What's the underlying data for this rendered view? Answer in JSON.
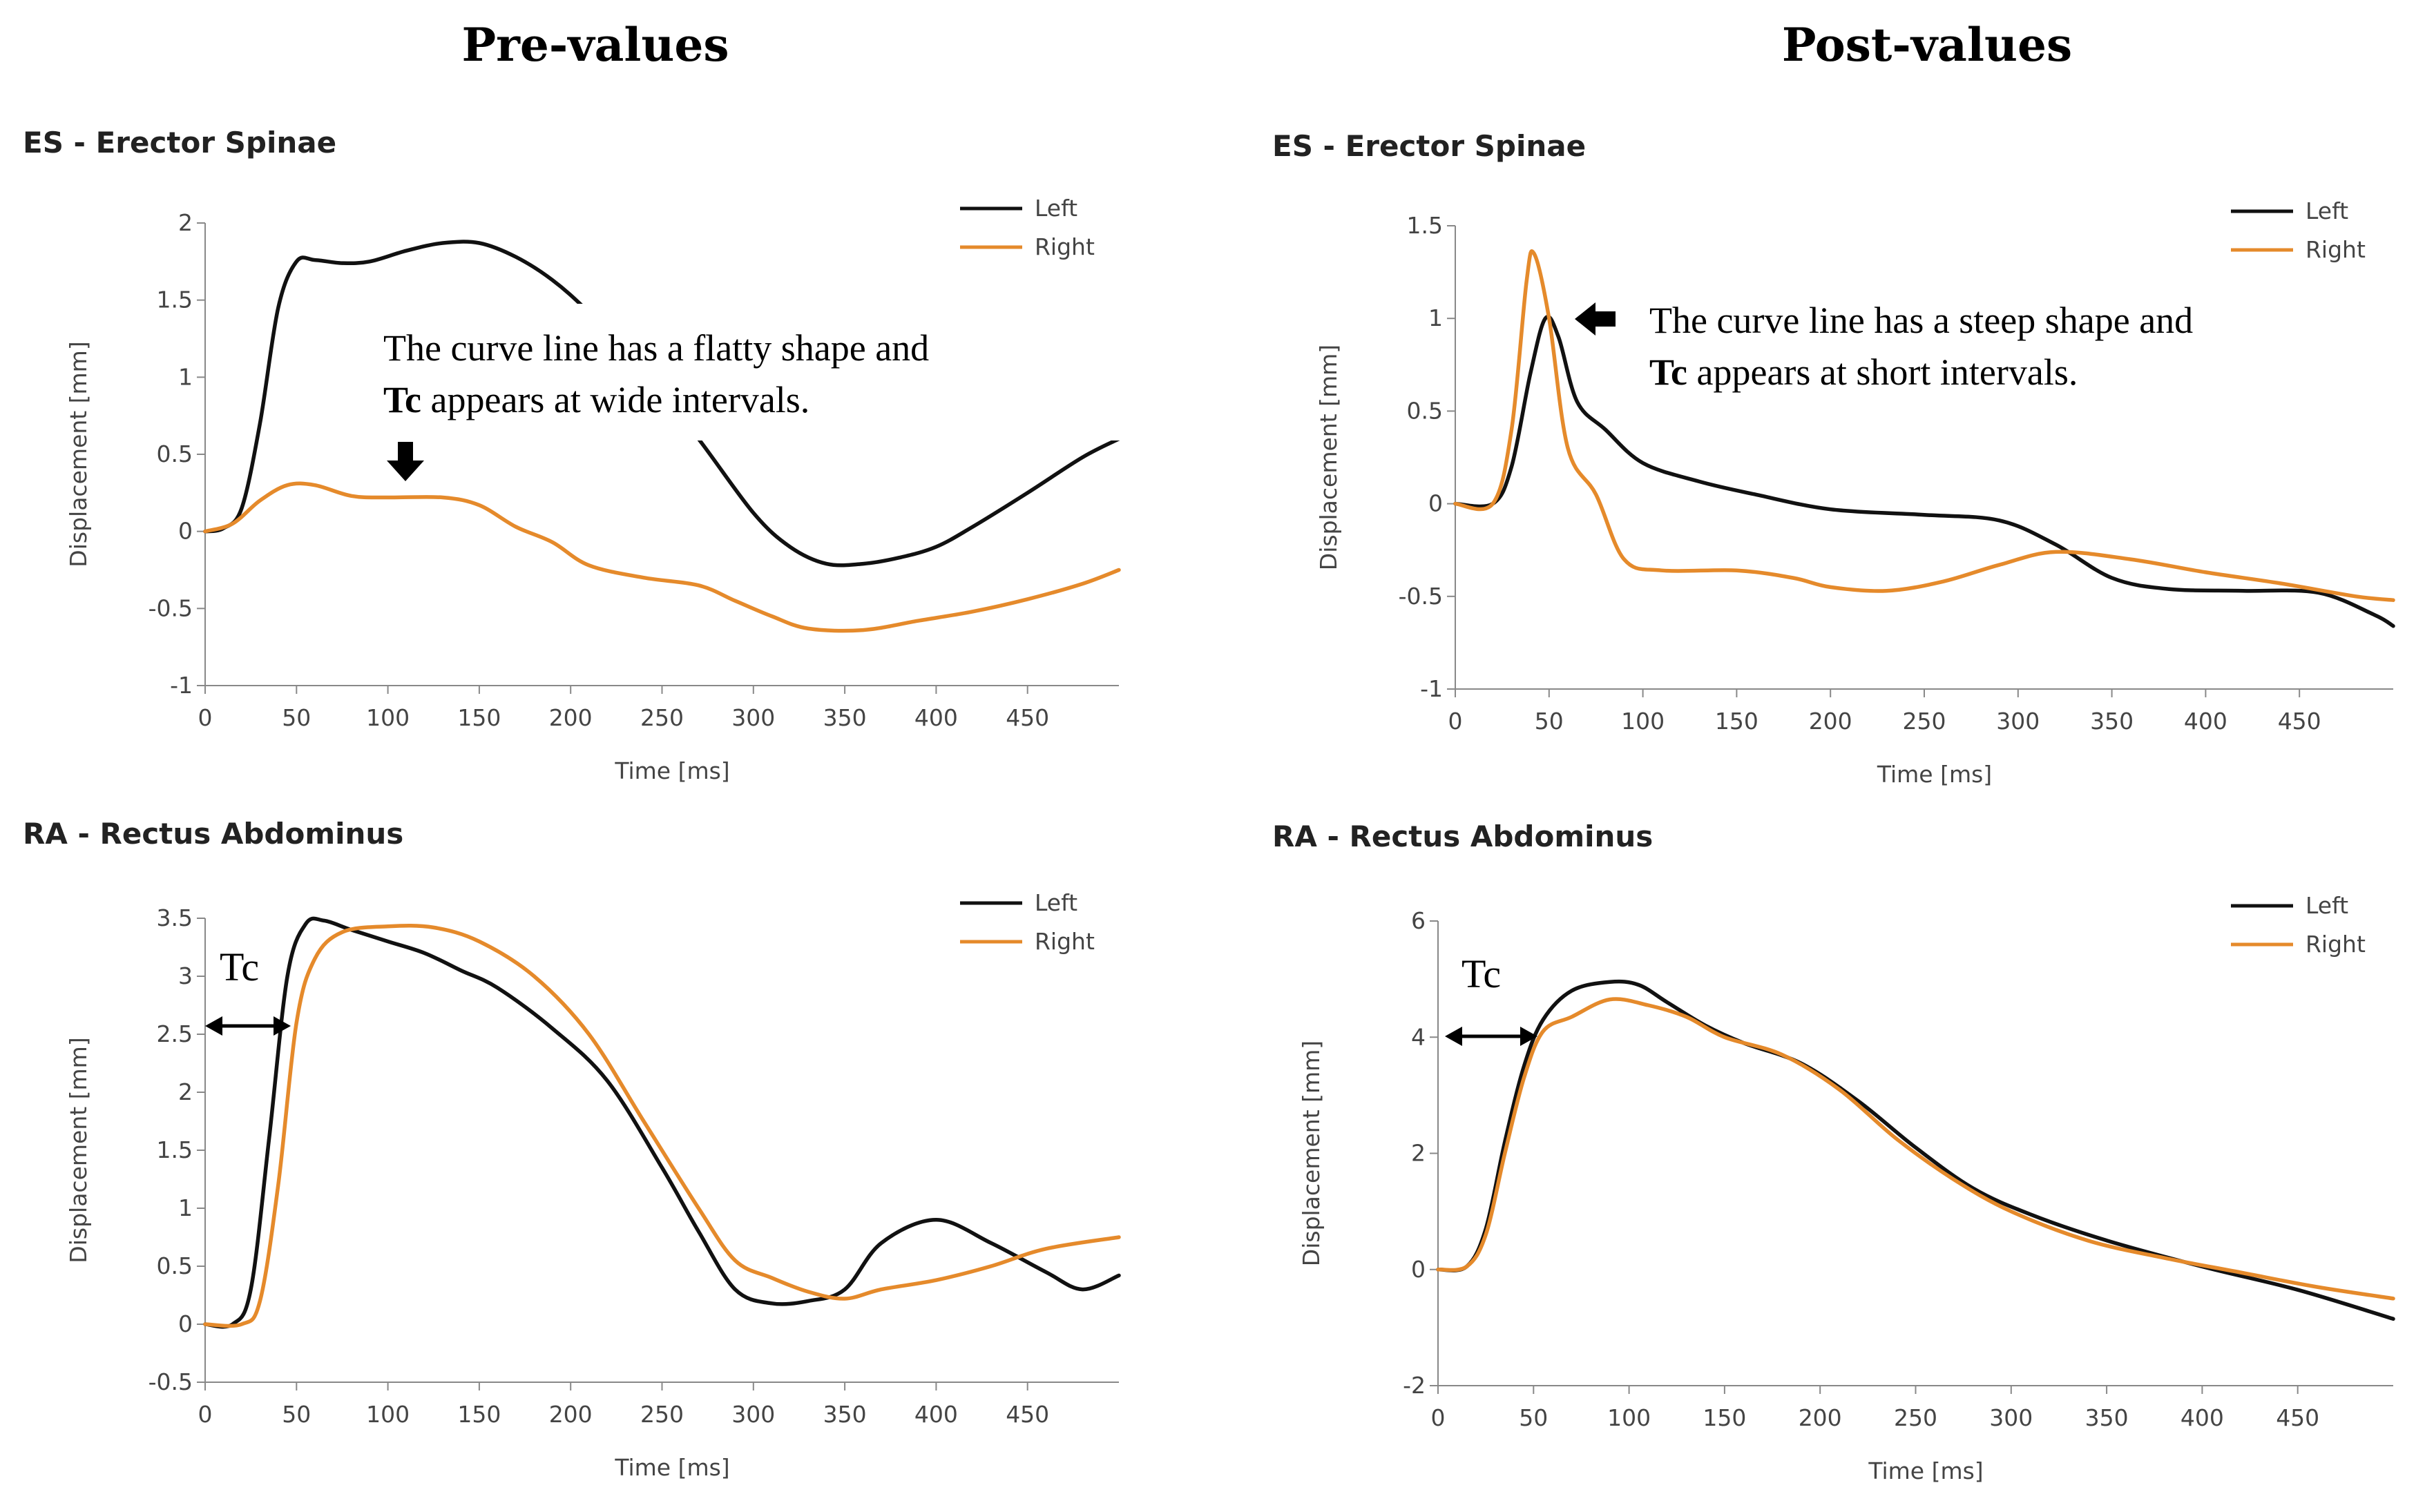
{
  "column_titles": {
    "left": "Pre-values",
    "right": "Post-values"
  },
  "colors": {
    "left": "#111111",
    "right": "#e58a2b"
  },
  "annotations": {
    "pre": {
      "line1": "The curve line has a flatty shape and",
      "bold2": "Tc",
      "rest2": " appears at wide intervals."
    },
    "post": {
      "line1": "The curve line has a steep shape and",
      "bold2": "Tc",
      "rest2": " appears at short intervals."
    },
    "tc_label": "Tc"
  },
  "chart_data": [
    {
      "id": "pre-es",
      "type": "line",
      "title": "ES - Erector Spinae",
      "xlabel": "Time [ms]",
      "ylabel": "Displacement [mm]",
      "xlim": [
        0,
        500
      ],
      "ylim": [
        -1,
        2
      ],
      "xticks": [
        0,
        50,
        100,
        150,
        200,
        250,
        300,
        350,
        400,
        450
      ],
      "yticks": [
        -1,
        -0.5,
        0,
        0.5,
        1,
        1.5,
        2
      ],
      "ytick_labels": [
        "-1",
        "-0.5",
        "0",
        "0.5",
        "1",
        "1.5",
        "2"
      ],
      "legend": "top-right",
      "series": [
        {
          "name": "Left",
          "color": "#111111",
          "points": [
            [
              0,
              0
            ],
            [
              10,
              0.02
            ],
            [
              20,
              0.15
            ],
            [
              30,
              0.7
            ],
            [
              40,
              1.45
            ],
            [
              50,
              1.75
            ],
            [
              60,
              1.76
            ],
            [
              75,
              1.74
            ],
            [
              90,
              1.75
            ],
            [
              110,
              1.82
            ],
            [
              130,
              1.87
            ],
            [
              150,
              1.87
            ],
            [
              170,
              1.78
            ],
            [
              190,
              1.63
            ],
            [
              210,
              1.42
            ],
            [
              240,
              1.05
            ],
            [
              270,
              0.6
            ],
            [
              300,
              0.12
            ],
            [
              320,
              -0.1
            ],
            [
              340,
              -0.21
            ],
            [
              360,
              -0.21
            ],
            [
              380,
              -0.17
            ],
            [
              400,
              -0.1
            ],
            [
              420,
              0.03
            ],
            [
              450,
              0.25
            ],
            [
              480,
              0.48
            ],
            [
              500,
              0.6
            ]
          ]
        },
        {
          "name": "Right",
          "color": "#e58a2b",
          "points": [
            [
              0,
              0
            ],
            [
              15,
              0.05
            ],
            [
              30,
              0.2
            ],
            [
              45,
              0.3
            ],
            [
              60,
              0.3
            ],
            [
              80,
              0.23
            ],
            [
              100,
              0.22
            ],
            [
              130,
              0.22
            ],
            [
              150,
              0.17
            ],
            [
              170,
              0.03
            ],
            [
              190,
              -0.07
            ],
            [
              210,
              -0.22
            ],
            [
              240,
              -0.3
            ],
            [
              270,
              -0.35
            ],
            [
              290,
              -0.45
            ],
            [
              310,
              -0.55
            ],
            [
              330,
              -0.63
            ],
            [
              360,
              -0.64
            ],
            [
              390,
              -0.58
            ],
            [
              420,
              -0.52
            ],
            [
              450,
              -0.44
            ],
            [
              480,
              -0.34
            ],
            [
              500,
              -0.25
            ]
          ]
        }
      ]
    },
    {
      "id": "post-es",
      "type": "line",
      "title": "ES - Erector Spinae",
      "xlabel": "Time [ms]",
      "ylabel": "Displacement [mm]",
      "xlim": [
        0,
        500
      ],
      "ylim": [
        -1,
        1.5
      ],
      "xticks": [
        0,
        50,
        100,
        150,
        200,
        250,
        300,
        350,
        400,
        450
      ],
      "yticks": [
        -1,
        -0.5,
        0,
        0.5,
        1,
        1.5
      ],
      "ytick_labels": [
        "-1",
        "-0.5",
        "0",
        "0.5",
        "1",
        "1.5"
      ],
      "legend": "top-right",
      "series": [
        {
          "name": "Left",
          "color": "#111111",
          "points": [
            [
              0,
              0
            ],
            [
              20,
              0
            ],
            [
              30,
              0.2
            ],
            [
              40,
              0.7
            ],
            [
              48,
              1.0
            ],
            [
              55,
              0.9
            ],
            [
              65,
              0.55
            ],
            [
              80,
              0.4
            ],
            [
              100,
              0.22
            ],
            [
              130,
              0.12
            ],
            [
              160,
              0.05
            ],
            [
              200,
              -0.03
            ],
            [
              250,
              -0.06
            ],
            [
              290,
              -0.09
            ],
            [
              320,
              -0.22
            ],
            [
              350,
              -0.4
            ],
            [
              380,
              -0.46
            ],
            [
              420,
              -0.47
            ],
            [
              460,
              -0.48
            ],
            [
              490,
              -0.6
            ],
            [
              500,
              -0.66
            ]
          ]
        },
        {
          "name": "Right",
          "color": "#e58a2b",
          "points": [
            [
              0,
              0
            ],
            [
              20,
              0
            ],
            [
              30,
              0.4
            ],
            [
              38,
              1.2
            ],
            [
              42,
              1.35
            ],
            [
              50,
              1.0
            ],
            [
              60,
              0.3
            ],
            [
              75,
              0.05
            ],
            [
              90,
              -0.3
            ],
            [
              110,
              -0.36
            ],
            [
              150,
              -0.36
            ],
            [
              180,
              -0.4
            ],
            [
              200,
              -0.45
            ],
            [
              230,
              -0.47
            ],
            [
              260,
              -0.42
            ],
            [
              290,
              -0.33
            ],
            [
              320,
              -0.26
            ],
            [
              360,
              -0.3
            ],
            [
              400,
              -0.37
            ],
            [
              440,
              -0.43
            ],
            [
              480,
              -0.5
            ],
            [
              500,
              -0.52
            ]
          ]
        }
      ]
    },
    {
      "id": "pre-ra",
      "type": "line",
      "title": "RA - Rectus Abdominus",
      "xlabel": "Time [ms]",
      "ylabel": "Displacement [mm]",
      "xlim": [
        0,
        500
      ],
      "ylim": [
        -0.5,
        3.5
      ],
      "xticks": [
        0,
        50,
        100,
        150,
        200,
        250,
        300,
        350,
        400,
        450
      ],
      "yticks": [
        -0.5,
        0,
        0.5,
        1,
        1.5,
        2,
        2.5,
        3,
        3.5
      ],
      "ytick_labels": [
        "-0.5",
        "0",
        "0.5",
        "1",
        "1.5",
        "2",
        "2.5",
        "3",
        "3.5"
      ],
      "legend": "top-right",
      "series": [
        {
          "name": "Left",
          "color": "#111111",
          "points": [
            [
              0,
              0
            ],
            [
              15,
              0
            ],
            [
              25,
              0.3
            ],
            [
              35,
              1.6
            ],
            [
              45,
              3.0
            ],
            [
              55,
              3.45
            ],
            [
              65,
              3.48
            ],
            [
              80,
              3.4
            ],
            [
              100,
              3.3
            ],
            [
              120,
              3.2
            ],
            [
              140,
              3.05
            ],
            [
              160,
              2.9
            ],
            [
              190,
              2.55
            ],
            [
              220,
              2.1
            ],
            [
              250,
              1.35
            ],
            [
              270,
              0.8
            ],
            [
              290,
              0.3
            ],
            [
              310,
              0.18
            ],
            [
              330,
              0.2
            ],
            [
              350,
              0.3
            ],
            [
              370,
              0.7
            ],
            [
              400,
              0.9
            ],
            [
              430,
              0.7
            ],
            [
              460,
              0.45
            ],
            [
              480,
              0.3
            ],
            [
              500,
              0.42
            ]
          ]
        },
        {
          "name": "Right",
          "color": "#e58a2b",
          "points": [
            [
              0,
              0
            ],
            [
              20,
              0
            ],
            [
              30,
              0.2
            ],
            [
              40,
              1.2
            ],
            [
              50,
              2.6
            ],
            [
              60,
              3.15
            ],
            [
              75,
              3.38
            ],
            [
              100,
              3.43
            ],
            [
              125,
              3.42
            ],
            [
              150,
              3.3
            ],
            [
              180,
              3.0
            ],
            [
              210,
              2.5
            ],
            [
              240,
              1.75
            ],
            [
              270,
              1.0
            ],
            [
              290,
              0.55
            ],
            [
              310,
              0.4
            ],
            [
              330,
              0.28
            ],
            [
              350,
              0.22
            ],
            [
              370,
              0.3
            ],
            [
              400,
              0.38
            ],
            [
              430,
              0.5
            ],
            [
              460,
              0.65
            ],
            [
              500,
              0.75
            ]
          ]
        }
      ]
    },
    {
      "id": "post-ra",
      "type": "line",
      "title": "RA - Rectus Abdominus",
      "xlabel": "Time [ms]",
      "ylabel": "Displacement [mm]",
      "xlim": [
        0,
        500
      ],
      "ylim": [
        -2,
        6
      ],
      "xticks": [
        0,
        50,
        100,
        150,
        200,
        250,
        300,
        350,
        400,
        450
      ],
      "yticks": [
        -2,
        0,
        2,
        4,
        6
      ],
      "ytick_labels": [
        "-2",
        "0",
        "2",
        "4",
        "6"
      ],
      "legend": "top-right",
      "series": [
        {
          "name": "Left",
          "color": "#111111",
          "points": [
            [
              0,
              0
            ],
            [
              15,
              0.05
            ],
            [
              25,
              0.7
            ],
            [
              35,
              2.2
            ],
            [
              45,
              3.5
            ],
            [
              55,
              4.3
            ],
            [
              70,
              4.8
            ],
            [
              90,
              4.95
            ],
            [
              105,
              4.9
            ],
            [
              120,
              4.6
            ],
            [
              140,
              4.2
            ],
            [
              160,
              3.9
            ],
            [
              190,
              3.55
            ],
            [
              220,
              2.9
            ],
            [
              250,
              2.1
            ],
            [
              280,
              1.4
            ],
            [
              310,
              0.95
            ],
            [
              350,
              0.5
            ],
            [
              400,
              0.05
            ],
            [
              450,
              -0.35
            ],
            [
              500,
              -0.85
            ]
          ]
        },
        {
          "name": "Right",
          "color": "#e58a2b",
          "points": [
            [
              0,
              0
            ],
            [
              15,
              0.05
            ],
            [
              25,
              0.6
            ],
            [
              35,
              2.0
            ],
            [
              45,
              3.3
            ],
            [
              55,
              4.1
            ],
            [
              70,
              4.35
            ],
            [
              90,
              4.65
            ],
            [
              110,
              4.55
            ],
            [
              130,
              4.35
            ],
            [
              150,
              4.0
            ],
            [
              180,
              3.7
            ],
            [
              210,
              3.1
            ],
            [
              240,
              2.25
            ],
            [
              270,
              1.55
            ],
            [
              300,
              1.0
            ],
            [
              340,
              0.5
            ],
            [
              380,
              0.2
            ],
            [
              420,
              -0.05
            ],
            [
              460,
              -0.3
            ],
            [
              500,
              -0.5
            ]
          ]
        }
      ]
    }
  ]
}
